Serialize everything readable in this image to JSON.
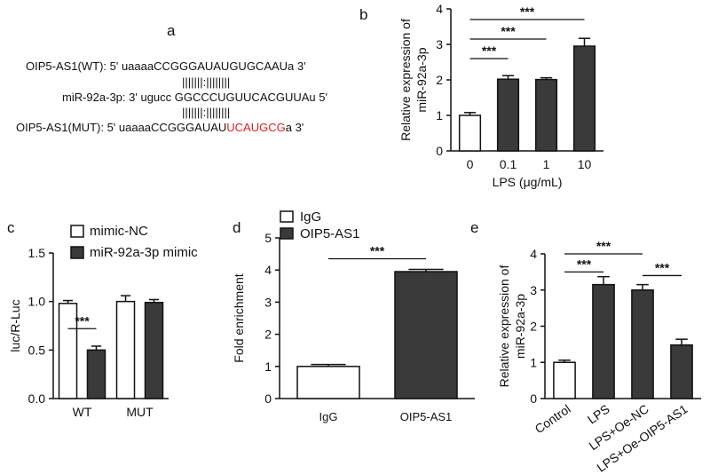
{
  "panels": {
    "a": {
      "label": "a",
      "lines": [
        {
          "prefix": "OIP5-AS1(WT): 5' uaaaaCCGGGAUAUGUGCAAUa 3'",
          "mut": "",
          "suffix": ""
        },
        {
          "prefix": "|||||||:||||||||",
          "mut": "",
          "suffix": ""
        },
        {
          "prefix": "miR-92a-3p: 3' ugucc GGCCCUGUUCACGUUAu 5'",
          "mut": "",
          "suffix": ""
        },
        {
          "prefix": "|||||||:||||||||",
          "mut": "",
          "suffix": ""
        },
        {
          "prefix": "OIP5-AS1(MUT): 5' uaaaaCCGGGAUAU",
          "mut": "UCAUGCG",
          "suffix": "a 3'"
        }
      ]
    }
  },
  "chart_data": [
    {
      "id": "b",
      "panel_label": "b",
      "type": "bar",
      "categories": [
        "0",
        "0.1",
        "1",
        "10"
      ],
      "values": [
        1.0,
        2.02,
        2.01,
        2.95
      ],
      "errors": [
        0.08,
        0.1,
        0.05,
        0.22
      ],
      "fill": [
        "white",
        "dark",
        "dark",
        "dark"
      ],
      "xlabel": "LPS (μg/mL)",
      "ylabel": [
        "Relative expression of",
        "miR-92a-3p"
      ],
      "ylim": [
        0,
        4
      ],
      "yticks": [
        0,
        1,
        2,
        3,
        4
      ],
      "significance": [
        {
          "from": 0,
          "to": 1,
          "label": "***",
          "y": 2.6
        },
        {
          "from": 0,
          "to": 2,
          "label": "***",
          "y": 3.15
        },
        {
          "from": 0,
          "to": 3,
          "label": "***",
          "y": 3.7
        }
      ]
    },
    {
      "id": "c",
      "panel_label": "c",
      "type": "bar",
      "categories": [
        "WT",
        "MUT"
      ],
      "series": [
        {
          "name": "mimic-NC",
          "values": [
            0.98,
            1.0
          ],
          "errors": [
            0.03,
            0.06
          ],
          "fill": "white"
        },
        {
          "name": "miR-92a-3p mimic",
          "values": [
            0.5,
            0.99
          ],
          "errors": [
            0.04,
            0.03
          ],
          "fill": "dark"
        }
      ],
      "ylabel": "luc/R-Luc",
      "ylim": [
        0,
        1.5
      ],
      "yticks": [
        "0.0",
        "0.5",
        "1.0",
        "1.5"
      ],
      "legend": "top",
      "significance": [
        {
          "category": 0,
          "label": "***",
          "y": 0.72
        }
      ]
    },
    {
      "id": "d",
      "panel_label": "d",
      "type": "bar",
      "categories": [
        "IgG",
        "OIP5-AS1"
      ],
      "values": [
        1.0,
        3.95
      ],
      "errors": [
        0.06,
        0.07
      ],
      "fill": [
        "white",
        "dark"
      ],
      "legend_entries": [
        "IgG",
        "OIP5-AS1"
      ],
      "ylabel": "Fold enrichment",
      "ylim": [
        0,
        5
      ],
      "yticks": [
        0,
        1,
        2,
        3,
        4,
        5
      ],
      "significance": [
        {
          "from": 0,
          "to": 1,
          "label": "***",
          "y": 4.35
        }
      ]
    },
    {
      "id": "e",
      "panel_label": "e",
      "type": "bar",
      "categories": [
        "Control",
        "LPS",
        "LPS+Oe-NC",
        "LPS+Oe-OIP5-AS1"
      ],
      "values": [
        1.0,
        3.15,
        3.0,
        1.48
      ],
      "errors": [
        0.06,
        0.22,
        0.15,
        0.16
      ],
      "fill": [
        "white",
        "dark",
        "dark",
        "dark"
      ],
      "ylabel": [
        "Relative expression of",
        "miR-92a-3p"
      ],
      "ylim": [
        0,
        4
      ],
      "yticks": [
        0,
        1,
        2,
        3,
        4
      ],
      "significance": [
        {
          "from": 0,
          "to": 1,
          "label": "***",
          "y": 3.5
        },
        {
          "from": 0,
          "to": 2,
          "label": "***",
          "y": 4.0
        },
        {
          "from": 2,
          "to": 3,
          "label": "***",
          "y": 3.4
        }
      ]
    }
  ]
}
